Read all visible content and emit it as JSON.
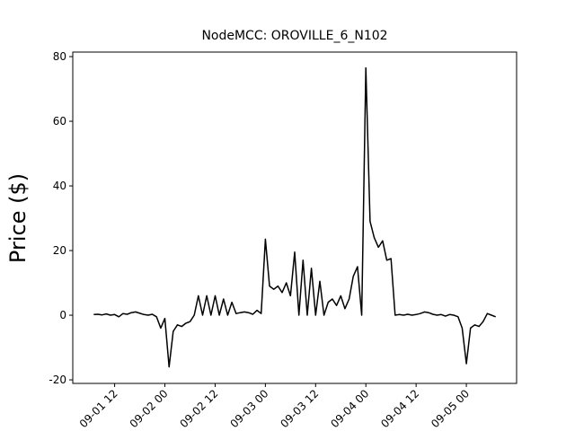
{
  "chart_data": {
    "type": "line",
    "title": "NodeMCC: OROVILLE_6_N102",
    "y_label": "Price ($)",
    "x": [
      "09-01 07",
      "09-01 08",
      "09-01 09",
      "09-01 10",
      "09-01 11",
      "09-01 12",
      "09-01 13",
      "09-01 14",
      "09-01 15",
      "09-01 16",
      "09-01 17",
      "09-01 18",
      "09-01 19",
      "09-01 20",
      "09-01 21",
      "09-01 22",
      "09-01 23",
      "09-02 00",
      "09-02 01",
      "09-02 02",
      "09-02 03",
      "09-02 04",
      "09-02 05",
      "09-02 06",
      "09-02 07",
      "09-02 08",
      "09-02 09",
      "09-02 10",
      "09-02 11",
      "09-02 12",
      "09-02 13",
      "09-02 14",
      "09-02 15",
      "09-02 16",
      "09-02 17",
      "09-02 18",
      "09-02 19",
      "09-02 20",
      "09-02 21",
      "09-02 22",
      "09-02 23",
      "09-03 00",
      "09-03 01",
      "09-03 02",
      "09-03 03",
      "09-03 04",
      "09-03 05",
      "09-03 06",
      "09-03 07",
      "09-03 08",
      "09-03 09",
      "09-03 10",
      "09-03 11",
      "09-03 12",
      "09-03 13",
      "09-03 14",
      "09-03 15",
      "09-03 16",
      "09-03 17",
      "09-03 18",
      "09-03 19",
      "09-03 20",
      "09-03 21",
      "09-03 22",
      "09-03 23",
      "09-04 00",
      "09-04 01",
      "09-04 02",
      "09-04 03",
      "09-04 04",
      "09-04 05",
      "09-04 06",
      "09-04 07",
      "09-04 08",
      "09-04 09",
      "09-04 10",
      "09-04 11",
      "09-04 12",
      "09-04 13",
      "09-04 14",
      "09-04 15",
      "09-04 16",
      "09-04 17",
      "09-04 18",
      "09-04 19",
      "09-04 20",
      "09-04 21",
      "09-04 22",
      "09-04 23",
      "09-05 00",
      "09-05 01",
      "09-05 02",
      "09-05 03",
      "09-05 04",
      "09-05 05",
      "09-05 06",
      "09-05 07"
    ],
    "series": [
      {
        "name": "Price",
        "color": "#000000",
        "values": [
          0.2,
          0.3,
          0.1,
          0.4,
          0,
          0.2,
          -0.5,
          0.5,
          0.3,
          0.8,
          1,
          0.6,
          0.2,
          0,
          0.3,
          -0.5,
          -4,
          -1,
          -16,
          -5,
          -3,
          -3.5,
          -2.5,
          -2,
          0,
          6,
          0,
          6,
          0,
          6,
          0,
          5,
          0,
          4,
          0.5,
          0.8,
          1,
          0.8,
          0.3,
          1.5,
          0.5,
          23.5,
          9,
          8,
          9,
          7,
          10,
          6,
          19.5,
          0,
          17,
          0,
          14.5,
          0,
          10.5,
          0,
          4,
          5,
          3,
          6,
          2,
          5,
          12,
          15,
          0,
          76.5,
          29,
          24,
          21,
          23,
          17,
          17.5,
          0,
          0.2,
          0,
          0.3,
          0,
          0.2,
          0.5,
          1,
          0.8,
          0.3,
          0,
          0.2,
          -0.3,
          0.2,
          0,
          -0.5,
          -4,
          -15,
          -4,
          -3,
          -3.5,
          -2,
          0.5,
          0,
          -0.5
        ]
      }
    ],
    "xlim": [
      "09-01 02",
      "09-05 12"
    ],
    "xticks": [
      "09-01 12",
      "09-02 00",
      "09-02 12",
      "09-03 00",
      "09-03 12",
      "09-04 00",
      "09-04 12",
      "09-05 00"
    ],
    "ylim": [
      -21.1,
      81.4
    ],
    "yticks": [
      -20,
      0,
      20,
      40,
      60,
      80
    ]
  }
}
